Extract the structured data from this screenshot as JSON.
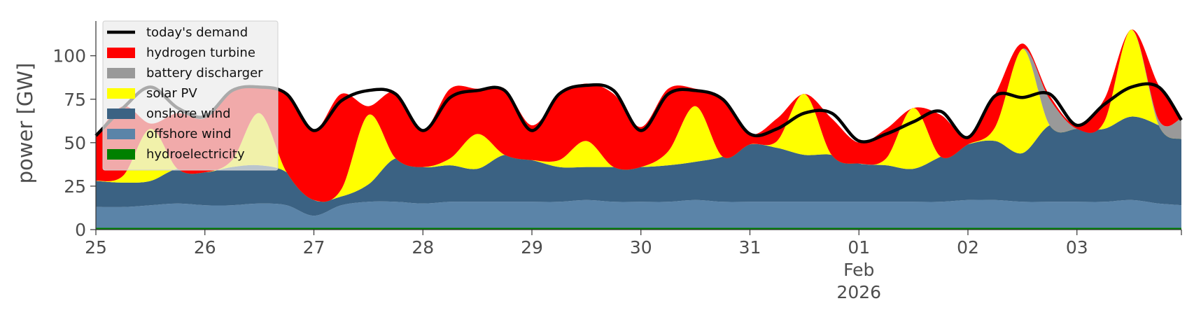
{
  "chart_data": {
    "type": "area",
    "stacked": true,
    "title": "",
    "xlabel": "",
    "ylabel": "power [GW]",
    "ylim": [
      0,
      120
    ],
    "xlim": [
      "2026-01-25T00:00",
      "2026-02-03T23:00"
    ],
    "grid": false,
    "legend_position": "top-left",
    "y_ticks": [
      "0",
      "25",
      "50",
      "75",
      "100"
    ],
    "x_ticks": [
      {
        "date": "2026-01-25",
        "label": "25"
      },
      {
        "date": "2026-01-26",
        "label": "26"
      },
      {
        "date": "2026-01-27",
        "label": "27"
      },
      {
        "date": "2026-01-28",
        "label": "28"
      },
      {
        "date": "2026-01-29",
        "label": "29"
      },
      {
        "date": "2026-01-30",
        "label": "30"
      },
      {
        "date": "2026-01-31",
        "label": "31"
      },
      {
        "date": "2026-02-01",
        "label": "01",
        "sublabels": [
          "Feb",
          "2026"
        ]
      },
      {
        "date": "2026-02-02",
        "label": "02"
      },
      {
        "date": "2026-02-03",
        "label": "03"
      }
    ],
    "x": [
      "2026-01-25T00:00",
      "2026-01-25T06:00",
      "2026-01-25T12:00",
      "2026-01-25T18:00",
      "2026-01-26T00:00",
      "2026-01-26T06:00",
      "2026-01-26T12:00",
      "2026-01-26T18:00",
      "2026-01-27T00:00",
      "2026-01-27T06:00",
      "2026-01-27T12:00",
      "2026-01-27T18:00",
      "2026-01-28T00:00",
      "2026-01-28T06:00",
      "2026-01-28T12:00",
      "2026-01-28T18:00",
      "2026-01-29T00:00",
      "2026-01-29T06:00",
      "2026-01-29T12:00",
      "2026-01-29T18:00",
      "2026-01-30T00:00",
      "2026-01-30T06:00",
      "2026-01-30T12:00",
      "2026-01-30T18:00",
      "2026-01-31T00:00",
      "2026-01-31T06:00",
      "2026-01-31T12:00",
      "2026-01-31T18:00",
      "2026-02-01T00:00",
      "2026-02-01T06:00",
      "2026-02-01T12:00",
      "2026-02-01T18:00",
      "2026-02-02T00:00",
      "2026-02-02T06:00",
      "2026-02-02T12:00",
      "2026-02-02T18:00",
      "2026-02-03T00:00",
      "2026-02-03T06:00",
      "2026-02-03T12:00",
      "2026-02-03T18:00",
      "2026-02-03T23:00"
    ],
    "series": [
      {
        "name": "hydroelectricity",
        "color": "#008000",
        "values": [
          1,
          1,
          1,
          1,
          1,
          1,
          1,
          1,
          1,
          1,
          1,
          1,
          1,
          1,
          1,
          1,
          1,
          1,
          1,
          1,
          1,
          1,
          1,
          1,
          1,
          1,
          1,
          1,
          1,
          1,
          1,
          1,
          1,
          1,
          1,
          1,
          1,
          1,
          1,
          1,
          1
        ]
      },
      {
        "name": "offshore wind",
        "color": "#5b84a8",
        "values": [
          12,
          12,
          13,
          14,
          13,
          13,
          14,
          13,
          7,
          13,
          15,
          15,
          14,
          15,
          15,
          15,
          15,
          15,
          16,
          15,
          15,
          15,
          16,
          15,
          15,
          15,
          15,
          15,
          15,
          15,
          15,
          15,
          16,
          16,
          15,
          15,
          15,
          15,
          16,
          14,
          13
        ]
      },
      {
        "name": "onshore wind",
        "color": "#3b6283",
        "values": [
          15,
          14,
          14,
          20,
          19,
          22,
          22,
          19,
          9,
          5,
          10,
          25,
          21,
          21,
          19,
          27,
          24,
          20,
          19,
          20,
          20,
          21,
          22,
          26,
          33,
          31,
          27,
          27,
          22,
          21,
          19,
          26,
          32,
          34,
          28,
          44,
          42,
          42,
          48,
          45,
          38
        ]
      },
      {
        "name": "solar PV",
        "color": "#ffff00",
        "values": [
          0,
          4,
          30,
          0,
          0,
          4,
          30,
          0,
          0,
          4,
          40,
          0,
          0,
          4,
          20,
          0,
          0,
          4,
          15,
          0,
          0,
          8,
          32,
          0,
          0,
          4,
          35,
          0,
          0,
          4,
          35,
          0,
          0,
          8,
          60,
          0,
          0,
          4,
          50,
          0,
          0
        ]
      },
      {
        "name": "battery discharger",
        "color": "#999999",
        "values": [
          0,
          0,
          0,
          0,
          0,
          0,
          0,
          0,
          0,
          0,
          0,
          0,
          0,
          0,
          0,
          0,
          0,
          0,
          0,
          0,
          0,
          0,
          0,
          0,
          0,
          0,
          0,
          0,
          0,
          0,
          0,
          0,
          0,
          0,
          0,
          15,
          0,
          0,
          0,
          3,
          12
        ]
      },
      {
        "name": "hydrogen turbine",
        "color": "#ff0000",
        "values": [
          26,
          40,
          3,
          32,
          31,
          40,
          15,
          45,
          40,
          55,
          5,
          38,
          21,
          40,
          26,
          38,
          20,
          37,
          33,
          42,
          23,
          36,
          10,
          33,
          6,
          13,
          0,
          21,
          12,
          17,
          0,
          24,
          5,
          19,
          3,
          2,
          2,
          13,
          0,
          20,
          0
        ]
      }
    ],
    "demand": {
      "name": "today's demand",
      "color": "#000000",
      "values": [
        54,
        70,
        82,
        70,
        65,
        80,
        82,
        78,
        57,
        74,
        80,
        78,
        57,
        76,
        80,
        80,
        57,
        78,
        83,
        80,
        57,
        78,
        80,
        75,
        55,
        58,
        67,
        67,
        51,
        55,
        62,
        68,
        53,
        77,
        76,
        78,
        60,
        72,
        82,
        82,
        63
      ]
    }
  }
}
